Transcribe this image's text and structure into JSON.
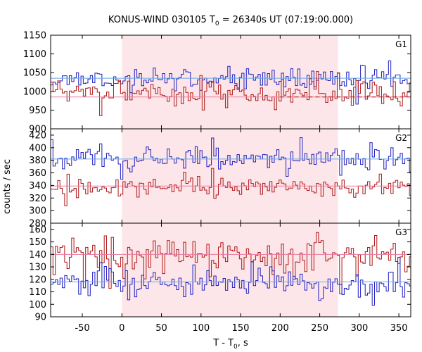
{
  "chart_data": {
    "type": "line",
    "title_main": "KONUS-WIND 030105 T",
    "title_sub": "0",
    "title_rest": " = 26340s UT (07:19:00.000)",
    "xlabel_main": "T - T",
    "xlabel_sub": "0",
    "xlabel_rest": ", s",
    "ylabel": "counts / sec",
    "xlim": [
      -90,
      365
    ],
    "xticks": [
      -50,
      0,
      50,
      100,
      150,
      200,
      250,
      300,
      350
    ],
    "highlight_interval": [
      0,
      273
    ],
    "colors": {
      "highlight": "#fde6e9",
      "blue_series": "#2020c0",
      "red_series": "#b01818",
      "blue_fit": "#6aa8e8",
      "red_fit": "#e87aa0",
      "axis": "#000000"
    },
    "panels": [
      {
        "label": "G1",
        "ylim": [
          900,
          1150
        ],
        "yticks": [
          900,
          950,
          1000,
          1050,
          1100,
          1150
        ],
        "series": [
          {
            "color": "blue",
            "mean": 1032,
            "sd": 13,
            "seed": 11,
            "fit_mean": 1035
          },
          {
            "color": "red",
            "mean": 995,
            "sd": 15,
            "seed": 23,
            "fit_mean": 985
          }
        ]
      },
      {
        "label": "G2",
        "ylim": [
          280,
          430
        ],
        "yticks": [
          280,
          300,
          320,
          340,
          360,
          380,
          400,
          420
        ],
        "series": [
          {
            "color": "blue",
            "mean": 383,
            "sd": 8,
            "seed": 37,
            "fit_mean": 382
          },
          {
            "color": "red",
            "mean": 338,
            "sd": 7,
            "seed": 41,
            "fit_mean": 339
          }
        ]
      },
      {
        "label": "G3",
        "ylim": [
          90,
          165
        ],
        "yticks": [
          90,
          100,
          110,
          120,
          130,
          140,
          150,
          160
        ],
        "series": [
          {
            "color": "red",
            "mean": 139,
            "sd": 7,
            "seed": 53,
            "fit_mean": 140
          },
          {
            "color": "blue",
            "mean": 117,
            "sd": 5,
            "seed": 67,
            "fit_mean": 118
          }
        ]
      }
    ]
  }
}
